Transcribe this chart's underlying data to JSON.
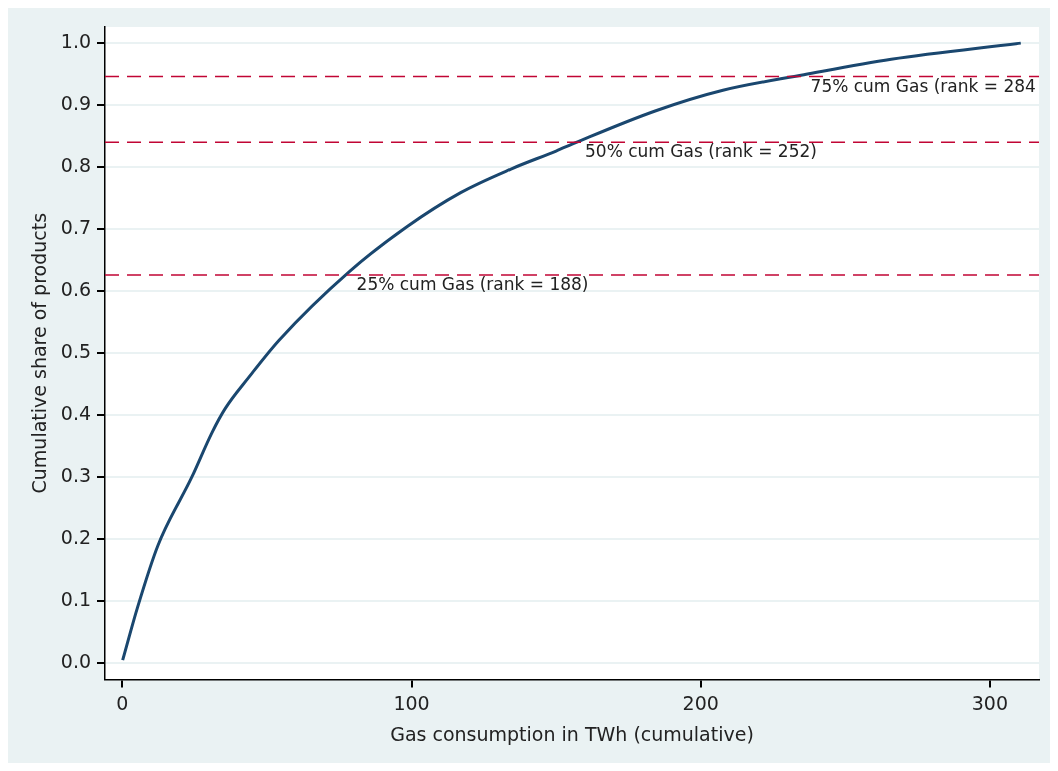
{
  "chart_data": {
    "type": "line",
    "xlabel": "Gas consumption in TWh (cumulative)",
    "ylabel": "Cumulative share of products",
    "xlim": [
      -6,
      317
    ],
    "xticks": [
      0,
      100,
      200,
      300
    ],
    "ylim": [
      -0.026,
      1.026
    ],
    "yticks": [
      {
        "value": 0,
        "label": "0.0"
      },
      {
        "value": 0.1,
        "label": "0.1"
      },
      {
        "value": 0.2,
        "label": "0.2"
      },
      {
        "value": 0.3,
        "label": "0.3"
      },
      {
        "value": 0.4,
        "label": "0.4"
      },
      {
        "value": 0.5,
        "label": "0.5"
      },
      {
        "value": 0.6,
        "label": "0.6"
      },
      {
        "value": 0.7,
        "label": "0.7"
      },
      {
        "value": 0.8,
        "label": "0.8"
      },
      {
        "value": 0.9,
        "label": "0.9"
      },
      {
        "value": 1,
        "label": "1.0"
      }
    ],
    "grid": "y",
    "legend": false,
    "marker": "none",
    "line_style": "solid",
    "series": [
      {
        "color": "#1a476f",
        "x": [
          0.1,
          5.3,
          12.3,
          24,
          31,
          35.6,
          43.7,
          54.2,
          78.6,
          98.4,
          117,
          134.4,
          150,
          157,
          184.5,
          207.7,
          235.7,
          265.9,
          310.7
        ],
        "values": [
          0.005,
          0.091,
          0.19,
          0.3,
          0.372,
          0.411,
          0.461,
          0.521,
          0.632,
          0.704,
          0.759,
          0.797,
          0.826,
          0.84,
          0.891,
          0.924,
          0.949,
          0.974,
          1.0
        ]
      }
    ],
    "ref_lines": [
      {
        "axis": "y",
        "value": 0.946,
        "color": "#c10534",
        "line_style": "dashed"
      },
      {
        "axis": "y",
        "value": 0.84,
        "color": "#c10534",
        "line_style": "dashed"
      },
      {
        "axis": "y",
        "value": 0.626,
        "color": "#c10534",
        "line_style": "dashed"
      }
    ],
    "annotations": [
      {
        "text": "75% cum Gas (rank = 284",
        "x": 238,
        "y": 0.946
      },
      {
        "text": "50% cum Gas (rank = 252)",
        "x": 160,
        "y": 0.84
      },
      {
        "text": "25% cum Gas (rank = 188)",
        "x": 81,
        "y": 0.626
      }
    ]
  }
}
